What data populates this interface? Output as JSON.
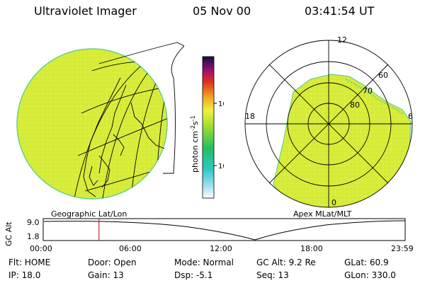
{
  "header": {
    "instrument": "Ultraviolet Imager",
    "date": "05 Nov 00",
    "time": "03:41:54 UT"
  },
  "geo_panel": {
    "label": "Geographic Lat/Lon"
  },
  "polar_panel": {
    "label": "Apex MLat/MLT",
    "mlt_labels": [
      "12",
      "18",
      "6",
      "0"
    ],
    "lat_labels": [
      "60",
      "70",
      "80"
    ]
  },
  "colorbar": {
    "unit_label": "photon cm",
    "unit_sup1": "-2",
    "unit_mid": "s",
    "unit_sup2": "-1",
    "ticks": [
      "100",
      "10"
    ],
    "scale": "log",
    "range": [
      2,
      500
    ]
  },
  "altitude_plot": {
    "ylabel": "GC Alt",
    "yticks": [
      "9.0",
      "1.8"
    ],
    "xticks": [
      "00:00",
      "06:00",
      "12:00",
      "18:00",
      "23:59"
    ],
    "current_time_hours": 3.7,
    "marker_color": "#cc0000"
  },
  "status": {
    "flt": "Flt: HOME",
    "door": "Door: Open",
    "mode": "Mode: Normal",
    "gc_alt": "GC Alt: 9.2 Re",
    "glat": "GLat:  60.9",
    "ip": "IP: 18.0",
    "gain": "Gain: 13",
    "dsp": "Dsp:   -5.1",
    "seq": "Seq: 13",
    "glon": "GLon: 330.0"
  },
  "colors": {
    "emission": "#d8ec3a",
    "emission_edge": "#6ad08a"
  }
}
